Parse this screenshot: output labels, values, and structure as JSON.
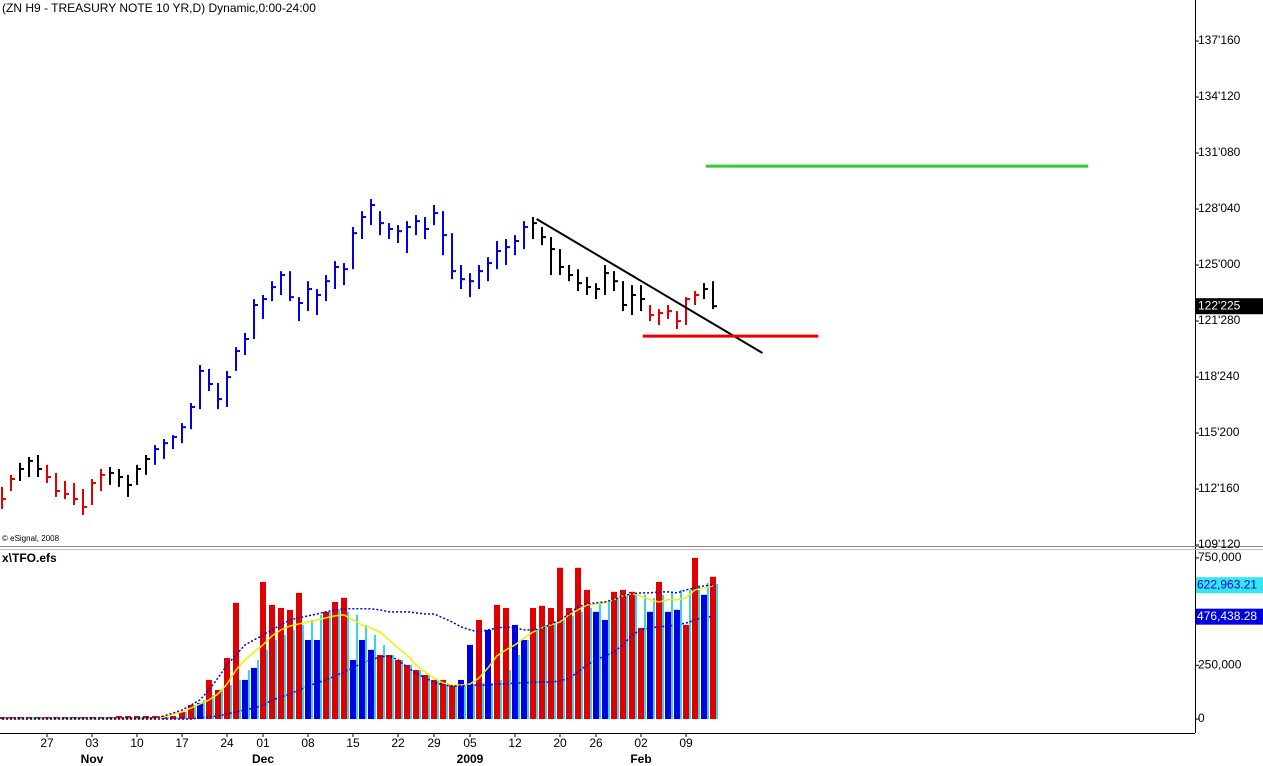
{
  "chart_data": [
    {
      "type": "ohlc",
      "title": "(ZN H9 - TREASURY NOTE 10 YR,D) Dynamic,0:00-24:00",
      "credit": "© eSignal, 2008",
      "categories": [
        null,
        null,
        null,
        null,
        null,
        "27",
        null,
        null,
        null,
        null,
        "03",
        null,
        null,
        null,
        null,
        "10",
        null,
        null,
        null,
        null,
        "17",
        null,
        null,
        null,
        null,
        "24",
        null,
        null,
        null,
        "01",
        null,
        null,
        null,
        null,
        "08",
        null,
        null,
        null,
        null,
        "15",
        null,
        null,
        null,
        null,
        "22",
        null,
        null,
        null,
        "29",
        null,
        null,
        null,
        "05",
        null,
        null,
        null,
        null,
        "12",
        null,
        null,
        null,
        null,
        "20",
        null,
        null,
        null,
        "26",
        null,
        null,
        null,
        null,
        "02",
        null,
        null,
        null,
        null,
        "09",
        null,
        null,
        null
      ],
      "month_labels": [
        {
          "value": 10,
          "label": "Nov"
        },
        {
          "value": 29,
          "label": "Dec"
        },
        {
          "value": 52,
          "label": "2009"
        },
        {
          "value": 71,
          "label": "Feb"
        }
      ],
      "high": [
        112.62,
        113.29,
        113.96,
        114.29,
        114.4,
        113.85,
        113.4,
        112.95,
        112.84,
        112.5,
        113.06,
        113.62,
        113.73,
        113.62,
        113.29,
        113.85,
        114.4,
        114.95,
        115.29,
        115.51,
        116.18,
        117.3,
        119.42,
        119.2,
        118.42,
        119.09,
        120.42,
        121.21,
        123.1,
        123.33,
        124.1,
        124.66,
        124.66,
        123.21,
        124.1,
        123.66,
        124.44,
        125.22,
        125.11,
        127.12,
        128.01,
        128.68,
        128.01,
        127.34,
        127.23,
        127.45,
        127.79,
        127.68,
        128.35,
        128.01,
        126.78,
        125.0,
        124.55,
        125.0,
        125.44,
        126.34,
        126.45,
        126.67,
        127.45,
        127.68,
        127.12,
        126.56,
        125.89,
        125.0,
        124.77,
        124.33,
        123.99,
        125.0,
        124.66,
        124.1,
        123.88,
        123.88,
        122.77,
        122.54,
        122.77,
        122.43,
        123.21,
        123.55,
        123.99,
        124.1
      ],
      "low": [
        111.39,
        112.39,
        112.95,
        113.17,
        113.17,
        112.84,
        112.06,
        111.94,
        111.61,
        111.05,
        111.61,
        112.39,
        112.73,
        112.62,
        112.06,
        112.73,
        113.29,
        113.85,
        114.18,
        114.73,
        115.06,
        115.84,
        116.96,
        117.97,
        116.96,
        117.08,
        119.09,
        119.98,
        120.87,
        121.99,
        122.99,
        123.33,
        122.99,
        121.87,
        122.43,
        122.21,
        122.99,
        123.66,
        123.88,
        124.77,
        126.45,
        127.23,
        126.67,
        126.45,
        126.23,
        125.67,
        126.67,
        126.45,
        127.23,
        125.55,
        124.21,
        123.66,
        123.21,
        123.66,
        124.1,
        124.77,
        125.0,
        125.55,
        125.89,
        126.45,
        126.11,
        124.44,
        124.44,
        124.1,
        123.55,
        123.33,
        123.1,
        123.33,
        123.55,
        122.43,
        122.21,
        122.43,
        121.87,
        121.65,
        121.99,
        121.43,
        121.65,
        122.77,
        123.1,
        122.54
      ],
      "close": [
        111.94,
        113.06,
        113.62,
        114.07,
        113.62,
        113.17,
        112.39,
        112.23,
        111.94,
        111.5,
        112.84,
        113.29,
        113.4,
        113.17,
        112.73,
        113.62,
        114.18,
        114.73,
        115.06,
        115.4,
        115.95,
        117.08,
        119.09,
        118.36,
        117.52,
        118.75,
        120.2,
        120.87,
        122.77,
        123.1,
        123.77,
        124.44,
        123.21,
        122.88,
        123.66,
        123.33,
        124.1,
        124.89,
        124.77,
        126.78,
        127.68,
        128.35,
        127.34,
        127.01,
        126.89,
        127.12,
        127.45,
        127.01,
        127.9,
        126.67,
        124.66,
        124.21,
        124.1,
        124.66,
        125.11,
        125.78,
        126.0,
        126.34,
        127.12,
        127.34,
        126.56,
        125.89,
        124.89,
        124.44,
        123.99,
        123.77,
        123.66,
        124.55,
        124.1,
        122.77,
        123.33,
        123.1,
        122.21,
        122.32,
        122.43,
        121.87,
        123.1,
        123.33,
        123.66,
        122.703
      ],
      "bar_colors": [
        "#e00000",
        "#e00000",
        "#000000",
        "#000000",
        "#000000",
        "#e00000",
        "#e00000",
        "#e00000",
        "#e00000",
        "#e00000",
        "#e00000",
        "#e00000",
        "#000000",
        "#000000",
        "#000000",
        "#000000",
        "#000000",
        "#0000e0",
        "#0000e0",
        "#0000e0",
        "#0000e0",
        "#0000e0",
        "#0000e0",
        "#0000e0",
        "#0000e0",
        "#0000e0",
        "#0000e0",
        "#0000e0",
        "#0000e0",
        "#0000e0",
        "#0000e0",
        "#0000e0",
        "#0000e0",
        "#0000e0",
        "#0000e0",
        "#0000e0",
        "#0000e0",
        "#0000e0",
        "#0000e0",
        "#0000e0",
        "#0000e0",
        "#0000e0",
        "#0000e0",
        "#0000e0",
        "#0000e0",
        "#0000e0",
        "#0000e0",
        "#0000e0",
        "#0000e0",
        "#0000e0",
        "#0000e0",
        "#0000e0",
        "#0000e0",
        "#0000e0",
        "#0000e0",
        "#0000e0",
        "#0000e0",
        "#0000e0",
        "#0000e0",
        "#000000",
        "#000000",
        "#000000",
        "#000000",
        "#000000",
        "#000000",
        "#000000",
        "#000000",
        "#000000",
        "#000000",
        "#000000",
        "#000000",
        "#000000",
        "#e00000",
        "#e00000",
        "#e00000",
        "#e00000",
        "#e00000",
        "#e00000",
        "#000000",
        "#000000"
      ],
      "ylim": [
        109.21,
        139.79
      ],
      "yticks": [
        {
          "value": 137.5,
          "label": "137'160"
        },
        {
          "value": 134.375,
          "label": "134'120"
        },
        {
          "value": 131.25,
          "label": "131'080"
        },
        {
          "value": 128.125,
          "label": "128'040"
        },
        {
          "value": 125,
          "label": "125'000"
        },
        {
          "value": 121.875,
          "label": "121'280"
        },
        {
          "value": 118.75,
          "label": "118'240"
        },
        {
          "value": 115.625,
          "label": "115'200"
        },
        {
          "value": 112.5,
          "label": "112'160"
        },
        {
          "value": 109.375,
          "label": "109'120"
        }
      ],
      "last_label": "122'225",
      "lines": [
        {
          "x": [
            59.4,
            84.5
          ],
          "y": [
            127.57,
            120.09
          ],
          "color": "#000000"
        },
        {
          "x": [
            78.2,
            120.7
          ],
          "y": [
            130.52,
            130.52
          ],
          "color": "#33cc33"
        },
        {
          "x": [
            71.2,
            90.7
          ],
          "y": [
            121.03,
            121.03
          ],
          "color": "#ee0000"
        }
      ]
    },
    {
      "type": "indicator",
      "title": "x\\TFO.efs",
      "values": [
        9000,
        9000,
        9000,
        9000,
        9000,
        9000,
        9000,
        9000,
        9000,
        9000,
        9000,
        9000,
        9000,
        14000,
        14000,
        14000,
        14000,
        14000,
        14000,
        14000,
        33000,
        65000,
        75000,
        182000,
        135000,
        284000,
        541000,
        182000,
        238000,
        638000,
        531000,
        517000,
        508000,
        587000,
        368000,
        368000,
        499000,
        545000,
        564000,
        275000,
        368000,
        322000,
        298000,
        298000,
        275000,
        252000,
        228000,
        205000,
        182000,
        182000,
        158000,
        182000,
        345000,
        461000,
        415000,
        531000,
        517000,
        438000,
        368000,
        517000,
        527000,
        517000,
        704000,
        517000,
        704000,
        601000,
        499000,
        461000,
        592000,
        601000,
        592000,
        424000,
        499000,
        638000,
        499000,
        508000,
        438000,
        750000,
        578000,
        662000
      ],
      "bar_colors": [
        "#e00000",
        "#e00000",
        "#e00000",
        "#e00000",
        "#e00000",
        "#e00000",
        "#e00000",
        "#e00000",
        "#e00000",
        "#e00000",
        "#e00000",
        "#e00000",
        "#e00000",
        "#e00000",
        "#e00000",
        "#e00000",
        "#e00000",
        "#e00000",
        "#e00000",
        "#e00000",
        "#e00000",
        "#e00000",
        "#0000e0",
        "#e00000",
        "#e00000",
        "#e00000",
        "#e00000",
        "#0000e0",
        "#0000e0",
        "#e00000",
        "#e00000",
        "#e00000",
        "#e00000",
        "#e00000",
        "#0000e0",
        "#0000e0",
        "#e00000",
        "#e00000",
        "#e00000",
        "#0000e0",
        "#0000e0",
        "#0000e0",
        "#e00000",
        "#e00000",
        "#e00000",
        "#e00000",
        "#e00000",
        "#e00000",
        "#e00000",
        "#e00000",
        "#e00000",
        "#0000e0",
        "#0000e0",
        "#e00000",
        "#0000e0",
        "#e00000",
        "#e00000",
        "#0000e0",
        "#0000e0",
        "#e00000",
        "#e00000",
        "#e00000",
        "#e00000",
        "#e00000",
        "#e00000",
        "#e00000",
        "#0000e0",
        "#0000e0",
        "#e00000",
        "#e00000",
        "#e00000",
        "#e00000",
        "#0000e0",
        "#e00000",
        "#0000e0",
        "#0000e0",
        "#e00000",
        "#e00000",
        "#0000e0",
        "#e00000"
      ],
      "series": [
        {
          "color": "#33d6ee",
          "style": "bars",
          "values": [
            9000,
            9000,
            9000,
            9000,
            9000,
            9000,
            9000,
            9000,
            9000,
            9000,
            9000,
            9000,
            9000,
            9000,
            9000,
            9000,
            9000,
            9000,
            9000,
            9000,
            33000,
            65000,
            89000,
            112000,
            135000,
            158000,
            182000,
            228000,
            275000,
            322000,
            368000,
            391000,
            415000,
            438000,
            461000,
            485000,
            499000,
            508000,
            499000,
            485000,
            438000,
            391000,
            345000,
            298000,
            275000,
            252000,
            228000,
            205000,
            182000,
            168000,
            154000,
            154000,
            163000,
            168000,
            168000,
            182000,
            228000,
            298000,
            368000,
            415000,
            438000,
            452000,
            461000,
            480000,
            499000,
            517000,
            541000,
            555000,
            564000,
            573000,
            583000,
            578000,
            564000,
            578000,
            592000,
            601000,
            601000,
            624000,
            634000,
            629000
          ]
        },
        {
          "color": "#f0f000",
          "style": "solid",
          "values": [
            0,
            0,
            0,
            0,
            0,
            0,
            0,
            0,
            0,
            0,
            0,
            0,
            0,
            0,
            0,
            0,
            0,
            0,
            9000,
            23000,
            33000,
            51000,
            70000,
            89000,
            117000,
            163000,
            228000,
            275000,
            312000,
            345000,
            387000,
            415000,
            433000,
            443000,
            452000,
            461000,
            471000,
            480000,
            485000,
            461000,
            438000,
            424000,
            405000,
            368000,
            331000,
            298000,
            252000,
            219000,
            191000,
            168000,
            158000,
            158000,
            163000,
            191000,
            238000,
            294000,
            322000,
            345000,
            377000,
            405000,
            424000,
            438000,
            452000,
            485000,
            508000,
            531000,
            536000,
            541000,
            555000,
            573000,
            583000,
            573000,
            555000,
            545000,
            555000,
            555000,
            564000,
            601000,
            610000,
            620000
          ]
        },
        {
          "color": "#0000e0",
          "style": "dotted",
          "label_color": "#0000e0",
          "label_background": "#33e6f0",
          "last_label": "622,963.21",
          "values": [
            5000,
            5000,
            5000,
            5000,
            5000,
            5000,
            5000,
            5000,
            5000,
            5000,
            5000,
            5000,
            5000,
            5000,
            5000,
            5000,
            5000,
            5000,
            14000,
            28000,
            42000,
            65000,
            89000,
            135000,
            191000,
            252000,
            298000,
            345000,
            368000,
            391000,
            415000,
            438000,
            461000,
            471000,
            480000,
            489000,
            499000,
            508000,
            513000,
            513000,
            513000,
            513000,
            508000,
            499000,
            499000,
            499000,
            494000,
            489000,
            489000,
            471000,
            452000,
            429000,
            415000,
            405000,
            415000,
            424000,
            429000,
            424000,
            415000,
            415000,
            419000,
            443000,
            461000,
            489000,
            522000,
            536000,
            541000,
            545000,
            555000,
            573000,
            583000,
            587000,
            587000,
            592000,
            592000,
            587000,
            601000,
            610000,
            620000,
            622963.21
          ]
        },
        {
          "color": "#0000e0",
          "style": "dotted",
          "label_color": "#ffffff",
          "label_background": "#0000e0",
          "last_label": "476,438.28",
          "values": [
            0,
            0,
            0,
            0,
            0,
            0,
            0,
            0,
            0,
            0,
            0,
            0,
            0,
            0,
            0,
            0,
            0,
            0,
            0,
            0,
            0,
            0,
            5000,
            9000,
            14000,
            23000,
            33000,
            42000,
            51000,
            65000,
            89000,
            102000,
            117000,
            135000,
            154000,
            168000,
            182000,
            200000,
            219000,
            238000,
            261000,
            275000,
            289000,
            294000,
            275000,
            242000,
            214000,
            191000,
            172000,
            158000,
            154000,
            154000,
            158000,
            158000,
            158000,
            163000,
            163000,
            168000,
            168000,
            172000,
            172000,
            172000,
            177000,
            191000,
            219000,
            252000,
            275000,
            294000,
            312000,
            345000,
            391000,
            415000,
            424000,
            429000,
            433000,
            438000,
            447000,
            461000,
            475000,
            476438.28
          ]
        }
      ],
      "ylim": [
        -65000,
        796000
      ],
      "yticks": [
        {
          "value": 750000,
          "label": "750,000"
        },
        {
          "value": 250000,
          "label": "250,000"
        },
        0
      ]
    }
  ]
}
